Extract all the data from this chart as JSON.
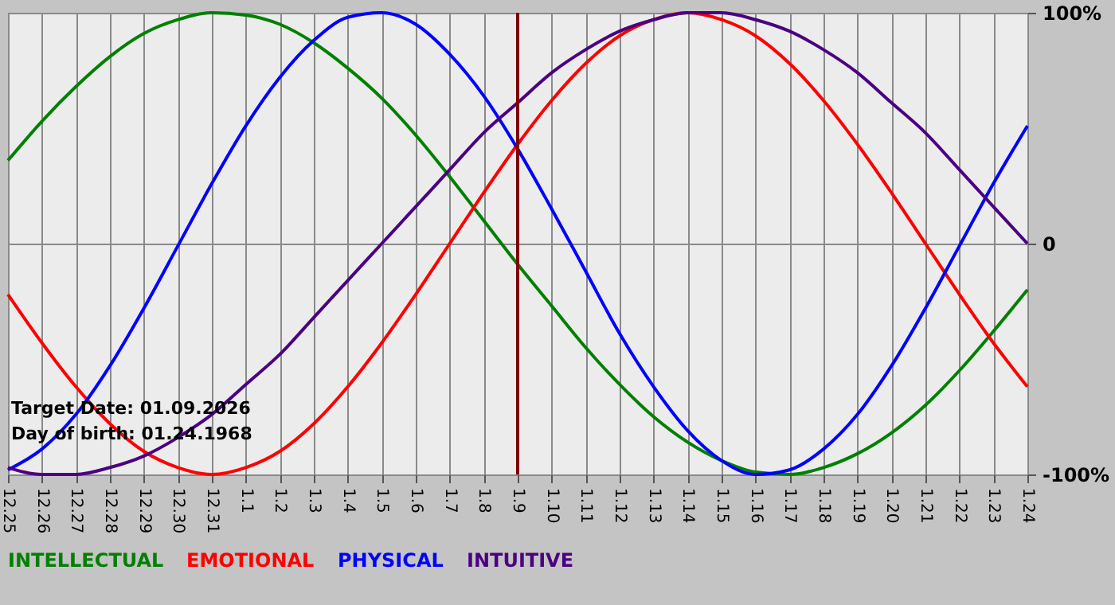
{
  "chart_data": {
    "type": "line",
    "categories": [
      "12.25",
      "12.26",
      "12.27",
      "12.28",
      "12.29",
      "12.30",
      "12.31",
      "1.1",
      "1.2",
      "1.3",
      "1.4",
      "1.5",
      "1.6",
      "1.7",
      "1.8",
      "1.9",
      "1.10",
      "1.11",
      "1.12",
      "1.13",
      "1.14",
      "1.15",
      "1.16",
      "1.17",
      "1.18",
      "1.19",
      "1.20",
      "1.21",
      "1.22",
      "1.23",
      "1.24"
    ],
    "series": [
      {
        "name": "INTELLECTUAL",
        "color": "#008000",
        "values": [
          36,
          53,
          68,
          81,
          91,
          97,
          100,
          99,
          95,
          87,
          76,
          63,
          47,
          29,
          10,
          -9,
          -27,
          -45,
          -61,
          -75,
          -86,
          -94,
          -99,
          -100,
          -97,
          -91,
          -82,
          -70,
          -55,
          -38,
          -20
        ]
      },
      {
        "name": "EMOTIONAL",
        "color": "#ff0000",
        "values": [
          -22,
          -43,
          -62,
          -78,
          -90,
          -97,
          -100,
          -97,
          -90,
          -78,
          -62,
          -43,
          -22,
          0,
          22,
          43,
          62,
          78,
          90,
          97,
          100,
          97,
          90,
          78,
          62,
          43,
          22,
          0,
          -22,
          -43,
          -62
        ]
      },
      {
        "name": "PHYSICAL",
        "color": "#0000ff",
        "values": [
          -98,
          -89,
          -74,
          -53,
          -28,
          -1,
          26,
          51,
          72,
          88,
          98,
          100,
          95,
          82,
          64,
          41,
          15,
          -12,
          -39,
          -62,
          -81,
          -94,
          -100,
          -98,
          -89,
          -74,
          -53,
          -28,
          -1,
          26,
          51
        ]
      },
      {
        "name": "INTUITIVE",
        "color": "#4b0082",
        "values": [
          -97,
          -100,
          -100,
          -97,
          -92,
          -84,
          -74,
          -61,
          -48,
          -32,
          -16,
          0,
          16,
          32,
          48,
          61,
          74,
          84,
          92,
          97,
          100,
          100,
          97,
          92,
          84,
          74,
          61,
          48,
          32,
          16,
          0
        ]
      }
    ],
    "ylim": [
      -100,
      100
    ],
    "yticks": [
      {
        "value": -100,
        "label": "-100%"
      },
      {
        "value": 0,
        "label": "0"
      },
      {
        "value": 100,
        "label": "100%"
      }
    ],
    "grid": true,
    "legend": "bottom left",
    "marker": "none",
    "line_style": "solid",
    "ref_lines": [
      {
        "axis": "x",
        "value": "1.9",
        "color": "#800000"
      }
    ],
    "annotations": [
      "Target Date: 01.09.2026",
      "Day of birth: 01.24.1968"
    ]
  }
}
